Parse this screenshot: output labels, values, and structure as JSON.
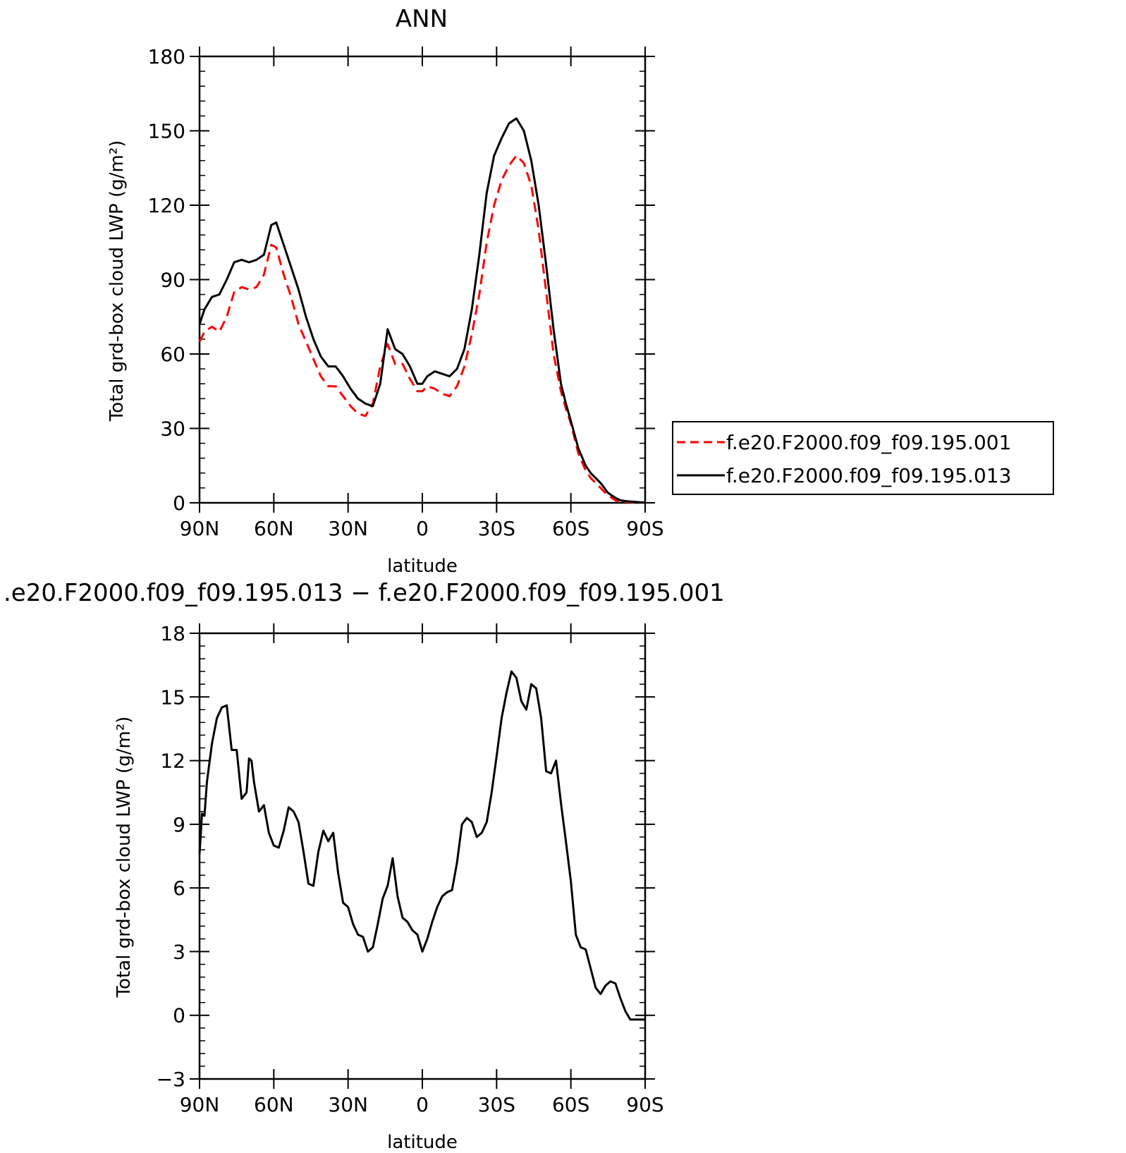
{
  "chart_data": [
    {
      "type": "line",
      "title": "ANN",
      "xlabel": "latitude",
      "ylabel": "Total grd-box cloud LWP (g/m²)",
      "xlim": [
        90,
        -90
      ],
      "ylim": [
        0,
        180
      ],
      "x_ticks": [
        {
          "value": 90,
          "label": "90N"
        },
        {
          "value": 60,
          "label": "60N"
        },
        {
          "value": 30,
          "label": "30N"
        },
        {
          "value": 0,
          "label": "0"
        },
        {
          "value": -30,
          "label": "30S"
        },
        {
          "value": -60,
          "label": "60S"
        },
        {
          "value": -90,
          "label": "90S"
        }
      ],
      "y_ticks": [
        0,
        30,
        60,
        90,
        120,
        150,
        180
      ],
      "legend_position": "right",
      "series": [
        {
          "name": "f.e20.F2000.f09_f09.195.001",
          "color": "#ff0000",
          "style": "dashed",
          "x": [
            90,
            88,
            85,
            82,
            79,
            76,
            73,
            70,
            67,
            64,
            61,
            59,
            56,
            53,
            50,
            47,
            44,
            41,
            38,
            35,
            32,
            29,
            26,
            23,
            20,
            17,
            14,
            11,
            8,
            5,
            2,
            0,
            -2,
            -5,
            -8,
            -11,
            -14,
            -17,
            -20,
            -23,
            -26,
            -29,
            -32,
            -35,
            -38,
            -41,
            -44,
            -47,
            -50,
            -53,
            -56,
            -58,
            -60,
            -63,
            -66,
            -68,
            -70,
            -72,
            -75,
            -78,
            -80,
            -83,
            -86,
            -88,
            -90
          ],
          "values": [
            65,
            69,
            71,
            69,
            75,
            85,
            87,
            86,
            87,
            92,
            104,
            103,
            92,
            83,
            72,
            65,
            58,
            51,
            47,
            47,
            43,
            39,
            36,
            35,
            40,
            55,
            64,
            56,
            56,
            50,
            45,
            45,
            47,
            46,
            44,
            43,
            47,
            55,
            68,
            84,
            105,
            120,
            130,
            136,
            140,
            137,
            128,
            110,
            85,
            60,
            45,
            38,
            32,
            20,
            13,
            10,
            8,
            6,
            3,
            1,
            0.5,
            0.3,
            0.2,
            0.1,
            0.1
          ]
        },
        {
          "name": "f.e20.F2000.f09_f09.195.013",
          "color": "#000000",
          "style": "solid",
          "x": [
            90,
            88,
            85,
            82,
            79,
            76,
            73,
            70,
            67,
            64,
            61,
            59,
            56,
            53,
            50,
            47,
            44,
            41,
            38,
            35,
            32,
            29,
            26,
            23,
            20,
            17,
            14,
            11,
            8,
            5,
            2,
            0,
            -2,
            -5,
            -8,
            -11,
            -14,
            -17,
            -20,
            -23,
            -26,
            -29,
            -32,
            -35,
            -38,
            -41,
            -44,
            -47,
            -50,
            -53,
            -56,
            -58,
            -60,
            -63,
            -66,
            -68,
            -70,
            -72,
            -75,
            -78,
            -80,
            -83,
            -86,
            -88,
            -90
          ],
          "values": [
            72,
            78,
            83,
            84,
            90,
            97,
            98,
            97,
            98,
            100,
            112,
            113,
            104,
            95,
            86,
            75,
            66,
            59,
            55,
            55,
            51,
            46,
            42,
            40,
            39,
            48,
            70,
            62,
            60,
            55,
            48,
            48,
            51,
            53,
            52,
            51,
            54,
            62,
            78,
            100,
            125,
            140,
            147,
            153,
            155,
            150,
            138,
            120,
            96,
            70,
            48,
            40,
            33,
            22,
            15,
            12,
            10,
            8,
            4,
            2,
            1,
            0.6,
            0.4,
            0.2,
            0.1
          ]
        }
      ]
    },
    {
      "type": "line",
      "title": ".e20.F2000.f09_f09.195.013 − f.e20.F2000.f09_f09.195.001",
      "xlabel": "latitude",
      "ylabel": "Total grd-box cloud LWP (g/m²)",
      "xlim": [
        90,
        -90
      ],
      "ylim": [
        -3,
        18
      ],
      "x_ticks": [
        {
          "value": 90,
          "label": "90N"
        },
        {
          "value": 60,
          "label": "60N"
        },
        {
          "value": 30,
          "label": "30N"
        },
        {
          "value": 0,
          "label": "0"
        },
        {
          "value": -30,
          "label": "30S"
        },
        {
          "value": -60,
          "label": "60S"
        },
        {
          "value": -90,
          "label": "90S"
        }
      ],
      "y_ticks": [
        -3,
        0,
        3,
        6,
        9,
        12,
        15,
        18
      ],
      "series": [
        {
          "color": "#000000",
          "style": "solid",
          "x": [
            90,
            89,
            88,
            87,
            85,
            83,
            81,
            79,
            77,
            75,
            73,
            71,
            70,
            69,
            68,
            66,
            64,
            62,
            60,
            58,
            56,
            54,
            52,
            50,
            48,
            46,
            44,
            42,
            40,
            38,
            36,
            34,
            32,
            30,
            28,
            26,
            24,
            22,
            20,
            18,
            16,
            14,
            12,
            10,
            8,
            6,
            4,
            2,
            0,
            -2,
            -4,
            -6,
            -8,
            -10,
            -12,
            -14,
            -16,
            -18,
            -20,
            -22,
            -24,
            -26,
            -28,
            -30,
            -32,
            -34,
            -36,
            -38,
            -40,
            -42,
            -44,
            -46,
            -48,
            -50,
            -52,
            -54,
            -56,
            -58,
            -60,
            -62,
            -64,
            -66,
            -68,
            -70,
            -72,
            -74,
            -76,
            -78,
            -80,
            -82,
            -84,
            -86,
            -88,
            -90
          ],
          "values": [
            7.6,
            9.5,
            9.4,
            11,
            12.8,
            14,
            14.5,
            14.6,
            12.5,
            12.5,
            10.2,
            10.5,
            12.1,
            12,
            11,
            9.6,
            9.9,
            8.6,
            8,
            7.9,
            8.7,
            9.8,
            9.6,
            9.1,
            7.7,
            6.2,
            6.1,
            7.7,
            8.7,
            8.2,
            8.6,
            6.7,
            5.3,
            5.1,
            4.3,
            3.8,
            3.7,
            3,
            3.2,
            4.3,
            5.5,
            6.1,
            7.4,
            5.6,
            4.6,
            4.4,
            4,
            3.8,
            3,
            3.6,
            4.4,
            5.1,
            5.6,
            5.8,
            5.9,
            7.2,
            9,
            9.3,
            9.1,
            8.4,
            8.6,
            9.1,
            10.5,
            12.2,
            14,
            15.2,
            16.2,
            15.9,
            14.8,
            14.4,
            15.6,
            15.4,
            14,
            11.5,
            11.4,
            12,
            10,
            8.2,
            6.3,
            3.8,
            3.2,
            3.1,
            2.2,
            1.3,
            1,
            1.4,
            1.6,
            1.5,
            0.8,
            0.2,
            -0.2,
            -0.2,
            -0.2,
            -0.2
          ]
        }
      ]
    }
  ]
}
